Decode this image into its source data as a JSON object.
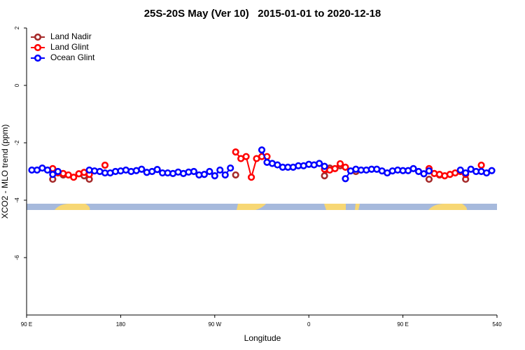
{
  "chart_data": {
    "type": "line",
    "title": "25S-20S May (Ver 10)   2015-01-01 to 2020-12-18",
    "xlabel": "Longitude",
    "ylabel": "XCO2 - MLO trend (ppm)",
    "xlim": [
      90,
      540
    ],
    "ylim": [
      -8,
      2
    ],
    "xticks": [
      {
        "value": 90,
        "label": "90 E"
      },
      180,
      {
        "value": 270,
        "label": "90 W"
      },
      {
        "value": 360,
        "label": "0"
      },
      {
        "value": 450,
        "label": "90 E"
      },
      540
    ],
    "yticks": [
      -6,
      -4,
      -2,
      0,
      2
    ],
    "legend": "top-left",
    "series": [
      {
        "name": "Land Nadir",
        "color": "#a52a2a",
        "x": [
          115,
          120,
          125,
          130,
          145,
          150,
          155,
          290,
          295,
          375,
          380,
          385,
          390,
          395,
          405,
          410,
          475,
          480,
          485,
          490,
          510
        ],
        "values": [
          -3.27,
          null,
          -3.12,
          null,
          -3.15,
          -3.27,
          null,
          -3.12,
          null,
          -3.15,
          -2.88,
          null,
          -2.8,
          null,
          -3.0,
          null,
          -3.27,
          null,
          -3.12,
          null,
          -3.27
        ]
      },
      {
        "name": "Land Glint",
        "color": "#ff0000",
        "x": [
          115,
          120,
          125,
          130,
          135,
          140,
          145,
          150,
          155,
          165,
          170,
          290,
          295,
          300,
          305,
          310,
          315,
          320,
          325,
          375,
          380,
          385,
          390,
          395,
          400,
          475,
          480,
          485,
          490,
          495,
          500,
          505,
          510,
          515,
          525
        ],
        "values": [
          -2.9,
          -3.05,
          -3.07,
          -3.12,
          -3.2,
          -3.08,
          -3.03,
          -3.1,
          null,
          -2.78,
          null,
          -2.32,
          -2.55,
          -2.48,
          -3.2,
          -2.55,
          -2.48,
          -2.48,
          null,
          -2.92,
          -2.95,
          -2.9,
          -2.73,
          -2.85,
          null,
          -2.9,
          -3.07,
          -3.1,
          -3.15,
          -3.1,
          -3.05,
          -3.0,
          -3.1,
          null,
          -2.78
        ]
      },
      {
        "name": "Ocean Glint",
        "color": "#0000ff",
        "x": [
          95,
          100,
          105,
          110,
          115,
          120,
          125,
          150,
          155,
          160,
          165,
          170,
          175,
          180,
          185,
          190,
          195,
          200,
          205,
          210,
          215,
          220,
          225,
          230,
          235,
          240,
          245,
          250,
          255,
          260,
          265,
          270,
          275,
          280,
          285,
          290,
          315,
          320,
          325,
          330,
          335,
          340,
          345,
          350,
          355,
          360,
          365,
          370,
          375,
          380,
          395,
          400,
          405,
          410,
          415,
          420,
          425,
          430,
          435,
          440,
          445,
          450,
          455,
          460,
          465,
          470,
          475,
          480,
          505,
          510,
          515,
          520,
          525,
          530,
          535
        ],
        "values": [
          -2.95,
          -2.95,
          -2.88,
          -2.95,
          -3.1,
          -3.0,
          null,
          -2.95,
          -2.98,
          -3.0,
          -3.05,
          -3.05,
          -3.0,
          -2.98,
          -2.95,
          -3.0,
          -2.97,
          -2.92,
          -3.03,
          -3.0,
          -2.93,
          -3.05,
          -3.05,
          -3.07,
          -3.02,
          -3.07,
          -3.02,
          -3.0,
          -3.12,
          -3.1,
          -3.0,
          -3.15,
          -2.95,
          -3.12,
          -2.88,
          null,
          -2.25,
          -2.68,
          -2.72,
          -2.77,
          -2.85,
          -2.85,
          -2.85,
          -2.8,
          -2.8,
          -2.75,
          -2.77,
          -2.72,
          -2.82,
          null,
          -3.25,
          -2.98,
          -2.92,
          -2.95,
          -2.95,
          -2.92,
          -2.92,
          -2.98,
          -3.05,
          -2.98,
          -2.95,
          -2.97,
          -2.97,
          -2.9,
          -3.0,
          -3.08,
          -2.98,
          null,
          -2.95,
          -3.05,
          -2.92,
          -3.0,
          -3.0,
          -3.05,
          -2.97
        ]
      }
    ]
  }
}
